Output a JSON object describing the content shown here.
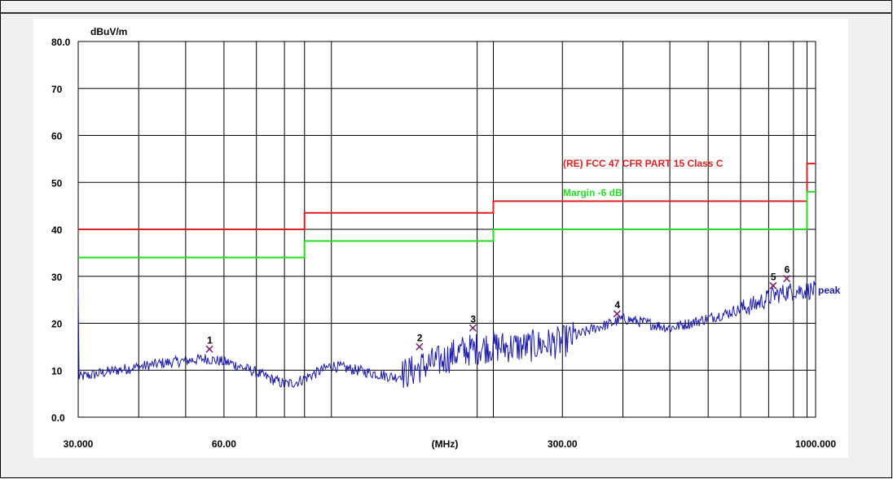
{
  "chart_data": {
    "type": "line",
    "ylabel": "dBuV/m",
    "xlabel": "(MHz)",
    "x_scale": "log",
    "xlim": [
      30,
      1000
    ],
    "ylim": [
      0,
      80
    ],
    "grid": true,
    "y_ticks": [
      {
        "value": 80,
        "label": "80.0"
      },
      {
        "value": 70,
        "label": "70"
      },
      {
        "value": 60,
        "label": "60"
      },
      {
        "value": 50,
        "label": "50"
      },
      {
        "value": 40,
        "label": "40"
      },
      {
        "value": 30,
        "label": "30"
      },
      {
        "value": 20,
        "label": "20"
      },
      {
        "value": 10,
        "label": "10"
      },
      {
        "value": 0,
        "label": "0.0"
      }
    ],
    "x_ticks": [
      {
        "value": 30,
        "label": "30.000"
      },
      {
        "value": 60,
        "label": "60.00"
      },
      {
        "value": 300,
        "label": "300.00"
      },
      {
        "value": 1000,
        "label": "1000.000"
      }
    ],
    "x_gridlines": [
      40,
      50,
      60,
      70,
      80,
      88,
      100,
      200,
      216,
      300,
      400,
      500,
      600,
      700,
      800,
      900,
      960
    ],
    "series": [
      {
        "name": "(RE) FCC 47 CFR PART 15 Class C",
        "color": "#e02020",
        "style": "step",
        "points": [
          [
            30,
            40
          ],
          [
            88,
            40
          ],
          [
            88,
            43.5
          ],
          [
            216,
            43.5
          ],
          [
            216,
            46
          ],
          [
            960,
            46
          ],
          [
            960,
            54
          ],
          [
            1000,
            54
          ]
        ]
      },
      {
        "name": "Margin -6 dB",
        "color": "#22dd22",
        "style": "step",
        "points": [
          [
            30,
            34
          ],
          [
            88,
            34
          ],
          [
            88,
            37.5
          ],
          [
            216,
            37.5
          ],
          [
            216,
            40
          ],
          [
            960,
            40
          ],
          [
            960,
            48
          ],
          [
            1000,
            48
          ]
        ]
      },
      {
        "name": "peak",
        "color": "#1a1aaa",
        "style": "noisy",
        "points": [
          [
            30,
            8.5
          ],
          [
            36,
            10
          ],
          [
            45,
            11.5
          ],
          [
            55,
            12.5
          ],
          [
            62,
            11.5
          ],
          [
            70,
            9.5
          ],
          [
            80,
            7
          ],
          [
            85,
            7.5
          ],
          [
            100,
            11
          ],
          [
            120,
            9.5
          ],
          [
            135,
            8.5
          ],
          [
            148,
            10
          ],
          [
            155,
            11
          ],
          [
            168,
            12
          ],
          [
            185,
            14
          ],
          [
            210,
            15
          ],
          [
            250,
            15
          ],
          [
            300,
            16
          ],
          [
            350,
            19
          ],
          [
            380,
            20
          ],
          [
            400,
            21
          ],
          [
            450,
            20
          ],
          [
            500,
            19
          ],
          [
            550,
            20
          ],
          [
            650,
            22
          ],
          [
            750,
            24
          ],
          [
            820,
            26
          ],
          [
            900,
            27
          ],
          [
            950,
            27
          ],
          [
            1000,
            27
          ]
        ]
      }
    ],
    "markers": [
      {
        "label": "1",
        "x": 56,
        "y": 14.5
      },
      {
        "label": "2",
        "x": 152,
        "y": 15
      },
      {
        "label": "3",
        "x": 196,
        "y": 19
      },
      {
        "label": "4",
        "x": 389,
        "y": 22
      },
      {
        "label": "5",
        "x": 817,
        "y": 28
      },
      {
        "label": "6",
        "x": 872,
        "y": 29.5
      }
    ],
    "series_labels": [
      {
        "text": "(RE) FCC 47 CFR PART 15 Class C",
        "color": "#e02020"
      },
      {
        "text": "Margin -6 dB",
        "color": "#22dd22"
      },
      {
        "text": "peak",
        "color": "#1a1aaa"
      }
    ]
  }
}
